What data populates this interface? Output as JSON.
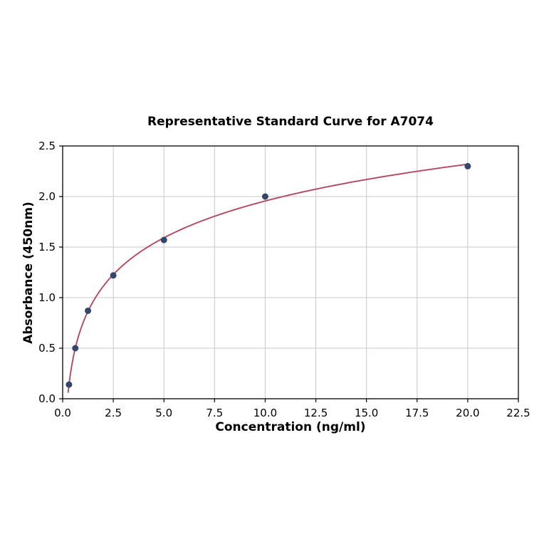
{
  "chart_data": {
    "type": "scatter",
    "title": "Representative Standard Curve for A7074",
    "xlabel": "Concentration (ng/ml)",
    "ylabel": "Absorbance (450nm)",
    "x": [
      0.313,
      0.625,
      1.25,
      2.5,
      5.0,
      10.0,
      20.0
    ],
    "y": [
      0.14,
      0.5,
      0.87,
      1.22,
      1.57,
      2.0,
      2.3
    ],
    "xlim": [
      0,
      22.5
    ],
    "ylim": [
      0,
      2.5
    ],
    "xticks": [
      0.0,
      2.5,
      5.0,
      7.5,
      10.0,
      12.5,
      15.0,
      17.5,
      20.0,
      22.5
    ],
    "yticks": [
      0.0,
      0.5,
      1.0,
      1.5,
      2.0,
      2.5
    ],
    "grid": true,
    "fit": {
      "type": "logarithmic"
    },
    "colors": {
      "curve": "#b5485f",
      "points": "#35466b",
      "grid": "#c9c9c9",
      "axis": "#000000"
    }
  }
}
